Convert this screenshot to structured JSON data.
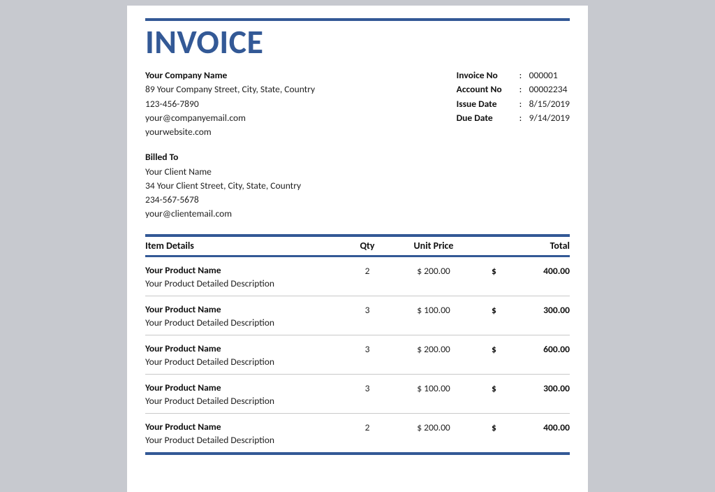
{
  "colors": {
    "accent": "#335996",
    "page_bg": "#ffffff",
    "outer_bg": "#c7c9cf",
    "rule_light": "#c9c9c9",
    "text": "#222222",
    "text_bold": "#111111"
  },
  "title": "INVOICE",
  "sender": {
    "company": "Your Company Name",
    "address": "89 Your Company Street, City, State, Country",
    "phone": "123-456-7890",
    "email": "your@companyemail.com",
    "website": "yourwebsite.com"
  },
  "meta": {
    "invoice_no_label": "Invoice No",
    "invoice_no": "000001",
    "account_no_label": "Account No",
    "account_no": "00002234",
    "issue_date_label": "Issue Date",
    "issue_date": "8/15/2019",
    "due_date_label": "Due Date",
    "due_date": "9/14/2019"
  },
  "billed": {
    "heading": "Billed To",
    "name": "Your Client Name",
    "address": "34 Your Client Street, City, State, Country",
    "phone": "234-567-5678",
    "email": "your@clientemail.com"
  },
  "table": {
    "headers": {
      "item": "Item Details",
      "qty": "Qty",
      "price": "Unit Price",
      "total": "Total"
    },
    "currency": "$",
    "rows": [
      {
        "name": "Your Product Name",
        "desc": "Your Product Detailed Description",
        "qty": "2",
        "price": "$ 200.00",
        "total": "400.00"
      },
      {
        "name": "Your Product Name",
        "desc": "Your Product Detailed Description",
        "qty": "3",
        "price": "$ 100.00",
        "total": "300.00"
      },
      {
        "name": "Your Product Name",
        "desc": "Your Product Detailed Description",
        "qty": "3",
        "price": "$ 200.00",
        "total": "600.00"
      },
      {
        "name": "Your Product Name",
        "desc": "Your Product Detailed Description",
        "qty": "3",
        "price": "$ 100.00",
        "total": "300.00"
      },
      {
        "name": "Your Product Name",
        "desc": "Your Product Detailed Description",
        "qty": "2",
        "price": "$ 200.00",
        "total": "400.00"
      }
    ]
  }
}
